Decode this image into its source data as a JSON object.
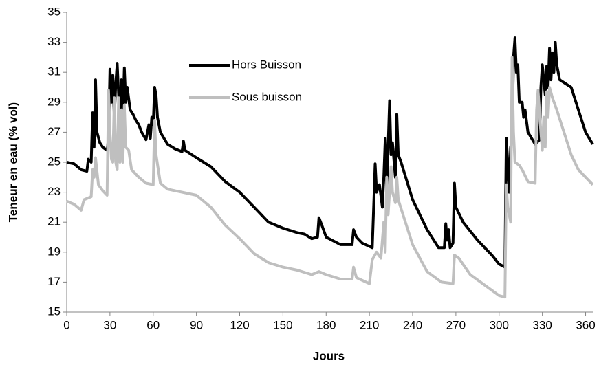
{
  "chart_data": {
    "type": "line",
    "xlabel": "Jours",
    "ylabel": "Teneur en eau (% vol)",
    "xlim": [
      0,
      365
    ],
    "xticks": [
      0,
      30,
      60,
      90,
      120,
      150,
      180,
      210,
      240,
      270,
      300,
      330,
      360
    ],
    "ylim": [
      15,
      35
    ],
    "yticks": [
      15,
      17,
      19,
      21,
      23,
      25,
      27,
      29,
      31,
      33,
      35
    ],
    "grid": false,
    "legend": "upper left",
    "series": [
      {
        "name": "Hors Buisson",
        "color": "#000000",
        "x": [
          0,
          5,
          10,
          14,
          15,
          17,
          18,
          19,
          20,
          21,
          23,
          25,
          28,
          29,
          30,
          31,
          32,
          33,
          34,
          35,
          36,
          37,
          38,
          39,
          40,
          41,
          42,
          44,
          46,
          48,
          50,
          52,
          55,
          57,
          58,
          59,
          60,
          61,
          62,
          63,
          65,
          70,
          75,
          80,
          81,
          82,
          90,
          100,
          110,
          120,
          130,
          140,
          150,
          160,
          165,
          170,
          174,
          175,
          177,
          180,
          190,
          198,
          199,
          201,
          205,
          212,
          214,
          215,
          217,
          219,
          220,
          221,
          222,
          224,
          225,
          226,
          228,
          229,
          230,
          232,
          240,
          250,
          258,
          262,
          263,
          264,
          265,
          266,
          268,
          269,
          270,
          275,
          285,
          295,
          300,
          304,
          305,
          306,
          307,
          308,
          309,
          310,
          311,
          312,
          313,
          314,
          316,
          317,
          318,
          320,
          325,
          328,
          329,
          330,
          331,
          332,
          333,
          334,
          335,
          336,
          337,
          338,
          339,
          340,
          342,
          350,
          355,
          360,
          365
        ],
        "values": [
          25.0,
          24.9,
          24.5,
          24.4,
          25.2,
          25.0,
          28.3,
          26.0,
          30.5,
          27.0,
          26.3,
          26.0,
          25.8,
          26.6,
          31.2,
          29.0,
          30.8,
          28.0,
          30.2,
          31.6,
          29.5,
          28.5,
          30.5,
          28.0,
          31.3,
          29.0,
          30.0,
          28.5,
          28.2,
          27.8,
          27.5,
          27.0,
          26.5,
          27.5,
          26.6,
          28.0,
          27.5,
          30.0,
          29.5,
          28.0,
          27.0,
          26.2,
          25.9,
          25.7,
          26.4,
          25.8,
          25.3,
          24.7,
          23.7,
          23.0,
          22.0,
          21.0,
          20.6,
          20.3,
          20.2,
          19.9,
          20.0,
          21.3,
          20.8,
          20.0,
          19.5,
          19.5,
          20.5,
          20.0,
          19.6,
          19.3,
          24.9,
          23.0,
          23.5,
          22.0,
          24.0,
          26.6,
          23.0,
          29.1,
          25.5,
          26.3,
          24.0,
          28.2,
          25.5,
          25.0,
          22.5,
          20.5,
          19.3,
          19.3,
          20.9,
          19.8,
          20.5,
          19.3,
          19.6,
          23.6,
          22.0,
          21.0,
          19.8,
          18.8,
          18.2,
          18.0,
          26.6,
          25.0,
          23.0,
          26.0,
          26.5,
          32.0,
          33.3,
          31.0,
          31.5,
          29.0,
          29.0,
          28.0,
          28.5,
          27.0,
          26.2,
          26.5,
          30.0,
          31.5,
          30.5,
          29.5,
          31.4,
          30.0,
          32.6,
          30.5,
          32.3,
          31.0,
          33.0,
          31.5,
          30.5,
          30.0,
          28.5,
          27.0,
          26.2
        ]
      },
      {
        "name": "Sous buisson",
        "color": "#bfbfbf",
        "x": [
          0,
          5,
          10,
          12,
          17,
          18,
          19,
          20,
          22,
          25,
          28,
          29,
          30,
          31,
          32,
          33,
          34,
          35,
          36,
          37,
          38,
          39,
          40,
          41,
          43,
          45,
          50,
          55,
          60,
          61,
          62,
          65,
          70,
          80,
          90,
          100,
          110,
          120,
          130,
          140,
          150,
          160,
          170,
          175,
          180,
          190,
          198,
          199,
          201,
          210,
          212,
          215,
          218,
          220,
          221,
          222,
          223,
          225,
          226,
          228,
          229,
          230,
          235,
          240,
          250,
          260,
          268,
          269,
          272,
          280,
          290,
          300,
          304,
          305,
          306,
          308,
          309,
          310,
          311,
          314,
          316,
          320,
          325,
          326,
          327,
          329,
          330,
          331,
          332,
          333,
          334,
          335,
          337,
          340,
          345,
          350,
          355,
          365
        ],
        "values": [
          22.4,
          22.2,
          21.8,
          22.5,
          22.7,
          24.5,
          24.0,
          25.3,
          23.5,
          23.1,
          22.8,
          29.8,
          27.0,
          25.2,
          25.0,
          29.3,
          25.0,
          24.5,
          29.3,
          25.0,
          28.5,
          25.0,
          28.8,
          26.0,
          25.8,
          24.5,
          24.0,
          23.6,
          23.5,
          27.8,
          25.5,
          23.6,
          23.2,
          23.0,
          22.8,
          22.0,
          20.8,
          19.9,
          18.9,
          18.3,
          18.0,
          17.8,
          17.5,
          17.7,
          17.5,
          17.2,
          17.2,
          18.0,
          17.3,
          16.9,
          18.5,
          19.0,
          18.6,
          21.0,
          19.0,
          24.0,
          21.5,
          24.7,
          23.0,
          22.3,
          24.0,
          22.5,
          21.0,
          19.5,
          17.7,
          17.0,
          16.9,
          18.8,
          18.6,
          17.5,
          16.8,
          16.1,
          16.0,
          23.5,
          22.0,
          21.0,
          32.0,
          27.0,
          25.0,
          24.8,
          24.5,
          23.7,
          23.6,
          28.5,
          29.8,
          27.0,
          25.8,
          28.0,
          26.0,
          29.7,
          28.0,
          30.0,
          29.3,
          28.5,
          27.0,
          25.5,
          24.5,
          23.5
        ]
      }
    ]
  }
}
